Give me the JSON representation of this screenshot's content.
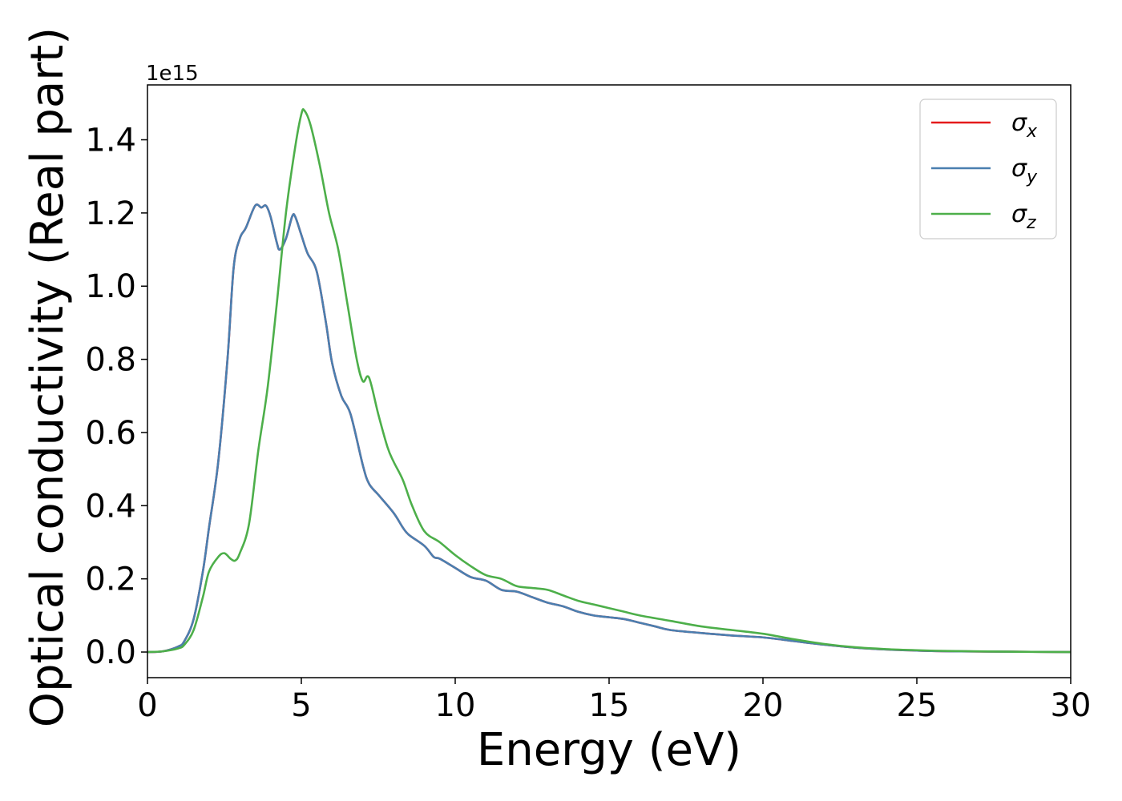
{
  "chart_data": {
    "type": "line",
    "xlabel": "Energy (eV)",
    "ylabel": "Optical conductivity (Real part)",
    "y_offset_label": "1e15",
    "xlim": [
      0,
      30
    ],
    "ylim": [
      -0.07,
      1.55
    ],
    "xticks": [
      0,
      5,
      10,
      15,
      20,
      25,
      30
    ],
    "yticks": [
      0.0,
      0.2,
      0.4,
      0.6,
      0.8,
      1.0,
      1.2,
      1.4
    ],
    "xtick_labels": [
      "0",
      "5",
      "10",
      "15",
      "20",
      "25",
      "30"
    ],
    "ytick_labels": [
      "0.0",
      "0.2",
      "0.4",
      "0.6",
      "0.8",
      "1.0",
      "1.2",
      "1.4"
    ],
    "grid": false,
    "legend_position": "top-right",
    "series": [
      {
        "name": "σx",
        "symbol": "σ",
        "subscript": "x",
        "color": "#e41a1c",
        "x": [
          0,
          0.5,
          1.0,
          1.2,
          1.5,
          1.8,
          2.0,
          2.3,
          2.6,
          2.8,
          3.0,
          3.2,
          3.5,
          3.7,
          3.85,
          4.0,
          4.2,
          4.3,
          4.5,
          4.7,
          4.8,
          5.0,
          5.2,
          5.5,
          5.8,
          6.0,
          6.3,
          6.6,
          7.0,
          7.2,
          7.5,
          8.0,
          8.3,
          8.5,
          9.0,
          9.3,
          9.5,
          10.0,
          10.5,
          11.0,
          11.5,
          12.0,
          12.5,
          13.0,
          13.5,
          14.0,
          14.5,
          15.0,
          15.5,
          16.0,
          16.5,
          17.0,
          18.0,
          19.0,
          20.0,
          21.0,
          22.0,
          23.0,
          24.0,
          25.0,
          26.0,
          28.0,
          30.0
        ],
        "values": [
          0.0,
          0.002,
          0.015,
          0.03,
          0.09,
          0.22,
          0.34,
          0.52,
          0.8,
          1.05,
          1.13,
          1.16,
          1.22,
          1.215,
          1.22,
          1.19,
          1.12,
          1.1,
          1.13,
          1.19,
          1.19,
          1.14,
          1.09,
          1.04,
          0.9,
          0.79,
          0.7,
          0.65,
          0.51,
          0.46,
          0.43,
          0.38,
          0.34,
          0.32,
          0.29,
          0.26,
          0.255,
          0.23,
          0.205,
          0.195,
          0.17,
          0.165,
          0.15,
          0.135,
          0.125,
          0.11,
          0.1,
          0.095,
          0.09,
          0.08,
          0.07,
          0.06,
          0.052,
          0.045,
          0.04,
          0.03,
          0.02,
          0.012,
          0.007,
          0.004,
          0.002,
          0.001,
          0.0
        ]
      },
      {
        "name": "σy",
        "symbol": "σ",
        "subscript": "y",
        "color": "#4a7fb0",
        "x": [
          0,
          0.5,
          1.0,
          1.2,
          1.5,
          1.8,
          2.0,
          2.3,
          2.6,
          2.8,
          3.0,
          3.2,
          3.5,
          3.7,
          3.85,
          4.0,
          4.2,
          4.3,
          4.5,
          4.7,
          4.8,
          5.0,
          5.2,
          5.5,
          5.8,
          6.0,
          6.3,
          6.6,
          7.0,
          7.2,
          7.5,
          8.0,
          8.3,
          8.5,
          9.0,
          9.3,
          9.5,
          10.0,
          10.5,
          11.0,
          11.5,
          12.0,
          12.5,
          13.0,
          13.5,
          14.0,
          14.5,
          15.0,
          15.5,
          16.0,
          16.5,
          17.0,
          18.0,
          19.0,
          20.0,
          21.0,
          22.0,
          23.0,
          24.0,
          25.0,
          26.0,
          28.0,
          30.0
        ],
        "values": [
          0.0,
          0.002,
          0.015,
          0.03,
          0.09,
          0.22,
          0.34,
          0.52,
          0.8,
          1.05,
          1.13,
          1.16,
          1.22,
          1.215,
          1.22,
          1.19,
          1.12,
          1.1,
          1.13,
          1.19,
          1.19,
          1.14,
          1.09,
          1.04,
          0.9,
          0.79,
          0.7,
          0.65,
          0.51,
          0.46,
          0.43,
          0.38,
          0.34,
          0.32,
          0.29,
          0.26,
          0.255,
          0.23,
          0.205,
          0.195,
          0.17,
          0.165,
          0.15,
          0.135,
          0.125,
          0.11,
          0.1,
          0.095,
          0.09,
          0.08,
          0.07,
          0.06,
          0.052,
          0.045,
          0.04,
          0.03,
          0.02,
          0.012,
          0.007,
          0.004,
          0.002,
          0.001,
          0.0
        ]
      },
      {
        "name": "σz",
        "symbol": "σ",
        "subscript": "z",
        "color": "#4daf4a",
        "x": [
          0,
          0.5,
          1.0,
          1.2,
          1.5,
          1.8,
          2.0,
          2.3,
          2.5,
          2.7,
          2.85,
          3.0,
          3.3,
          3.6,
          3.9,
          4.2,
          4.5,
          4.8,
          5.0,
          5.1,
          5.3,
          5.6,
          5.9,
          6.2,
          6.5,
          6.8,
          7.0,
          7.2,
          7.5,
          7.8,
          8.0,
          8.3,
          8.6,
          9.0,
          9.5,
          10.0,
          10.5,
          11.0,
          11.5,
          12.0,
          12.5,
          13.0,
          13.5,
          14.0,
          14.5,
          15.0,
          15.5,
          16.0,
          17.0,
          18.0,
          19.0,
          20.0,
          21.0,
          22.0,
          23.0,
          24.0,
          25.0,
          26.0,
          28.0,
          30.0
        ],
        "values": [
          0.0,
          0.002,
          0.01,
          0.02,
          0.06,
          0.15,
          0.22,
          0.26,
          0.27,
          0.255,
          0.25,
          0.27,
          0.35,
          0.55,
          0.72,
          0.95,
          1.2,
          1.38,
          1.47,
          1.48,
          1.44,
          1.33,
          1.2,
          1.1,
          0.95,
          0.8,
          0.74,
          0.75,
          0.65,
          0.56,
          0.52,
          0.47,
          0.4,
          0.33,
          0.3,
          0.265,
          0.235,
          0.21,
          0.2,
          0.18,
          0.175,
          0.17,
          0.155,
          0.14,
          0.13,
          0.12,
          0.11,
          0.1,
          0.085,
          0.07,
          0.06,
          0.05,
          0.035,
          0.022,
          0.013,
          0.008,
          0.005,
          0.003,
          0.001,
          0.0
        ]
      }
    ]
  }
}
